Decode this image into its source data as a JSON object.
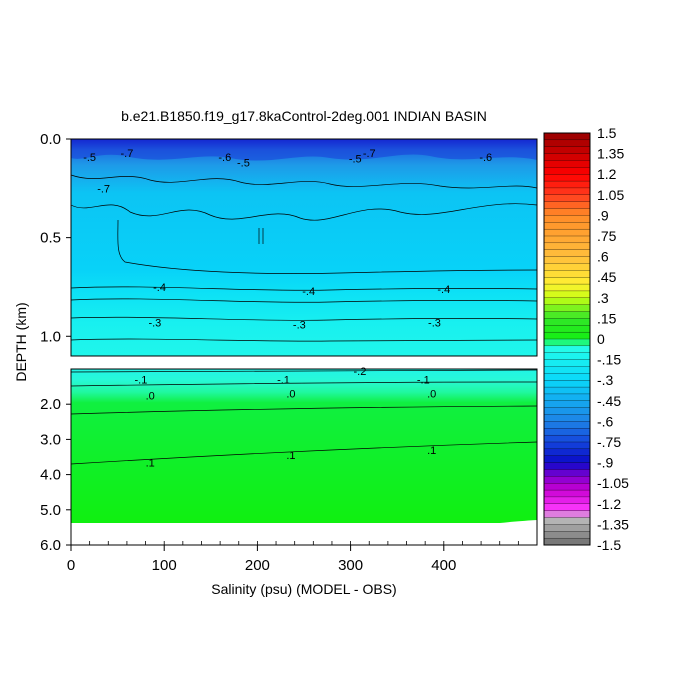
{
  "chart_data": {
    "type": "heatmap",
    "title": "b.e21.B1850.f19_g17.8kaControl-2deg.001 INDIAN BASIN",
    "xlabel": "Salinity (psu) (MODEL - OBS)",
    "ylabel": "DEPTH (km)",
    "x_ticks": [
      "0",
      "100",
      "200",
      "300",
      "400"
    ],
    "x_tick_values": [
      0,
      100,
      200,
      300,
      400
    ],
    "xlim": [
      0,
      500
    ],
    "upper_panel": {
      "ylim": [
        0.0,
        1.1
      ],
      "y_ticks": [
        "0.0",
        "0.5",
        "1.0"
      ],
      "y_tick_values": [
        0.0,
        0.5,
        1.0
      ],
      "contour_labels": [
        {
          "text": "-.5",
          "x": 20,
          "y": 0.09
        },
        {
          "text": "-.7",
          "x": 60,
          "y": 0.07
        },
        {
          "text": "-.6",
          "x": 165,
          "y": 0.09
        },
        {
          "text": "-.5",
          "x": 185,
          "y": 0.12
        },
        {
          "text": "-.7",
          "x": 35,
          "y": 0.25
        },
        {
          "text": "-.5",
          "x": 305,
          "y": 0.1
        },
        {
          "text": "-.7",
          "x": 320,
          "y": 0.07
        },
        {
          "text": "-.6",
          "x": 445,
          "y": 0.09
        },
        {
          "text": "-.4",
          "x": 95,
          "y": 0.75
        },
        {
          "text": "-.4",
          "x": 255,
          "y": 0.77
        },
        {
          "text": "-.4",
          "x": 400,
          "y": 0.76
        },
        {
          "text": "-.3",
          "x": 90,
          "y": 0.93
        },
        {
          "text": "-.3",
          "x": 245,
          "y": 0.94
        },
        {
          "text": "-.3",
          "x": 390,
          "y": 0.93
        }
      ]
    },
    "lower_panel": {
      "ylim": [
        1.0,
        6.0
      ],
      "y_ticks": [
        "2.0",
        "3.0",
        "4.0",
        "5.0",
        "6.0"
      ],
      "y_tick_values": [
        2.0,
        3.0,
        4.0,
        5.0,
        6.0
      ],
      "contour_labels": [
        {
          "text": "-.2",
          "x": 310,
          "y": 1.05
        },
        {
          "text": "-.1",
          "x": 75,
          "y": 1.3
        },
        {
          "text": "-.1",
          "x": 228,
          "y": 1.3
        },
        {
          "text": "-.1",
          "x": 378,
          "y": 1.3
        },
        {
          "text": ".0",
          "x": 85,
          "y": 1.75
        },
        {
          "text": ".0",
          "x": 236,
          "y": 1.7
        },
        {
          "text": ".0",
          "x": 387,
          "y": 1.7
        },
        {
          "text": ".1",
          "x": 85,
          "y": 3.65
        },
        {
          "text": ".1",
          "x": 236,
          "y": 3.45
        },
        {
          "text": ".1",
          "x": 387,
          "y": 3.3
        }
      ]
    },
    "colorbar": {
      "min": -1.5,
      "max": 1.5,
      "step": 0.05,
      "labels": [
        "1.5",
        "1.35",
        "1.2",
        "1.05",
        ".9",
        ".75",
        ".6",
        ".45",
        ".3",
        ".15",
        "0",
        "-.15",
        "-.3",
        "-.45",
        "-.6",
        "-.75",
        "-.9",
        "-1.05",
        "-1.2",
        "-1.35",
        "-1.5"
      ],
      "label_values": [
        1.5,
        1.35,
        1.2,
        1.05,
        0.9,
        0.75,
        0.6,
        0.45,
        0.3,
        0.15,
        0,
        -0.15,
        -0.3,
        -0.45,
        -0.6,
        -0.75,
        -0.9,
        -1.05,
        -1.2,
        -1.35,
        -1.5
      ]
    },
    "colors": {
      "deep_blue": "#1010c8",
      "mid_blue": "#1e8ce6",
      "light_blue": "#08d2f8",
      "cyan": "#18f0f0",
      "aqua": "#28f8e0",
      "green": "#10f010",
      "land_white": "#ffffff"
    }
  }
}
